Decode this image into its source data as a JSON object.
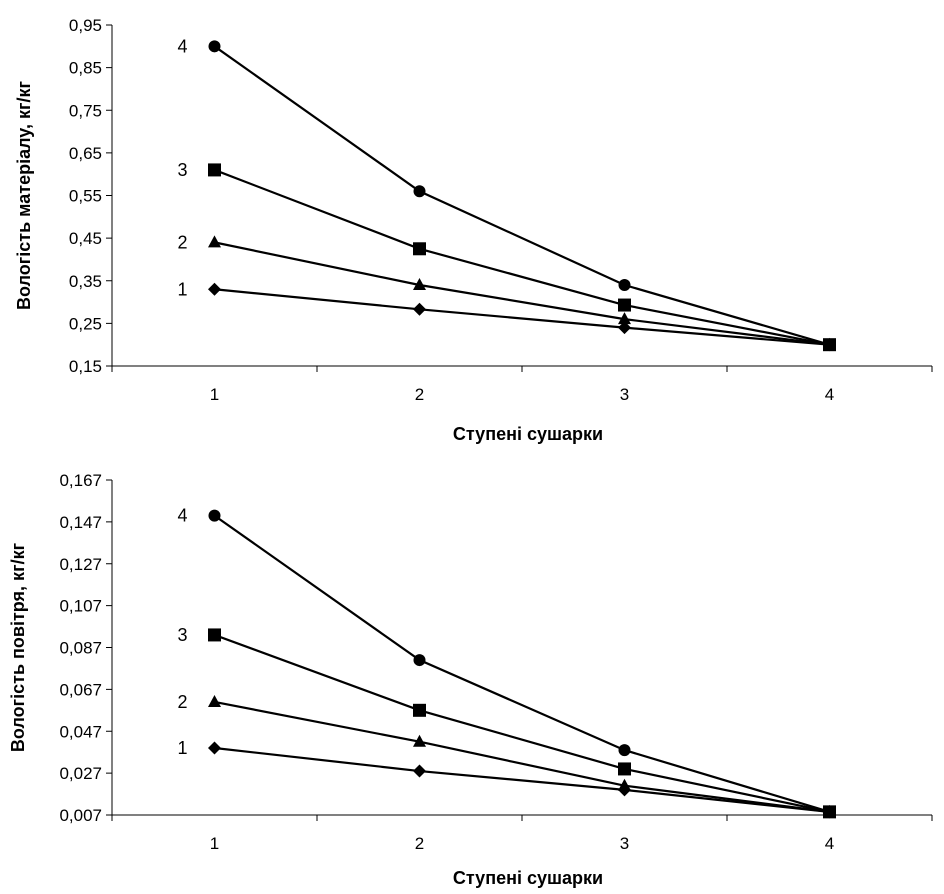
{
  "chart_data": [
    {
      "type": "line",
      "title": "",
      "xlabel": "Ступені сушарки",
      "ylabel": "Вологість матеріалу, кг/кг",
      "categories": [
        "1",
        "2",
        "3",
        "4"
      ],
      "ylim": [
        0.15,
        0.95
      ],
      "yticks": [
        "0,15",
        "0,25",
        "0,35",
        "0,45",
        "0,55",
        "0,65",
        "0,75",
        "0,85",
        "0,95"
      ],
      "grid": false,
      "series": [
        {
          "label": "1",
          "marker": "diamond",
          "values": [
            0.33,
            0.283,
            0.24,
            0.2
          ]
        },
        {
          "label": "2",
          "marker": "triangle",
          "values": [
            0.44,
            0.34,
            0.26,
            0.2
          ]
        },
        {
          "label": "3",
          "marker": "square",
          "values": [
            0.61,
            0.425,
            0.293,
            0.2
          ]
        },
        {
          "label": "4",
          "marker": "circle",
          "values": [
            0.9,
            0.56,
            0.34,
            0.2
          ]
        }
      ]
    },
    {
      "type": "line",
      "title": "",
      "xlabel": "Ступені сушарки",
      "ylabel": "Вологість повітря, кг/кг",
      "categories": [
        "1",
        "2",
        "3",
        "4"
      ],
      "ylim": [
        0.007,
        0.167
      ],
      "yticks": [
        "0,007",
        "0,027",
        "0,047",
        "0,067",
        "0,087",
        "0,107",
        "0,127",
        "0,147",
        "0,167"
      ],
      "grid": false,
      "series": [
        {
          "label": "1",
          "marker": "diamond",
          "values": [
            0.039,
            0.028,
            0.019,
            0.0085
          ]
        },
        {
          "label": "2",
          "marker": "triangle",
          "values": [
            0.061,
            0.042,
            0.021,
            0.0085
          ]
        },
        {
          "label": "3",
          "marker": "square",
          "values": [
            0.093,
            0.057,
            0.029,
            0.0085
          ]
        },
        {
          "label": "4",
          "marker": "circle",
          "values": [
            0.15,
            0.081,
            0.038,
            0.0085
          ]
        }
      ]
    }
  ]
}
